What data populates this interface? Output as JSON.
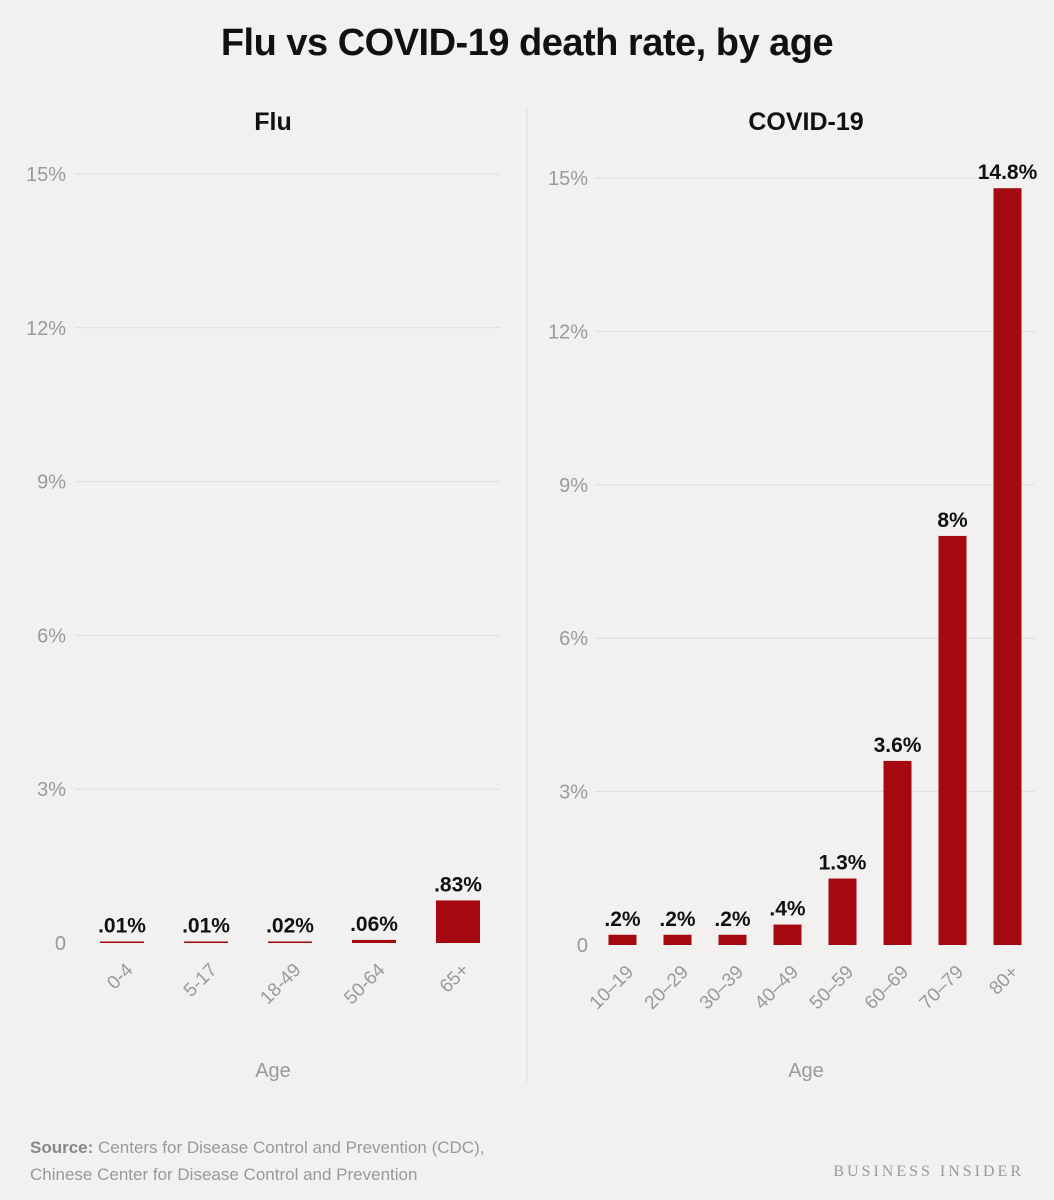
{
  "title": "Flu vs COVID-19 death rate, by age",
  "colors": {
    "bar": "#a5080e",
    "grid": "#dddddd",
    "tick": "#9a9a9a",
    "label": "#111111"
  },
  "chart_data": [
    {
      "type": "bar",
      "title": "Flu",
      "xlabel": "Age",
      "ylabel": "",
      "ylim": [
        0,
        15
      ],
      "yticks": [
        0,
        3,
        6,
        9,
        12,
        15
      ],
      "ytick_labels": [
        "0",
        "3%",
        "6%",
        "9%",
        "12%",
        "15%"
      ],
      "categories": [
        "0-4",
        "5-17",
        "18-49",
        "50-64",
        "65+"
      ],
      "values": [
        0.01,
        0.01,
        0.02,
        0.06,
        0.83
      ],
      "data_labels": [
        ".01%",
        ".01%",
        ".02%",
        ".06%",
        ".83%"
      ]
    },
    {
      "type": "bar",
      "title": "COVID-19",
      "xlabel": "Age",
      "ylabel": "",
      "ylim": [
        0,
        15
      ],
      "yticks": [
        0,
        3,
        6,
        9,
        12,
        15
      ],
      "ytick_labels": [
        "0",
        "3%",
        "6%",
        "9%",
        "12%",
        "15%"
      ],
      "categories": [
        "10–19",
        "20–29",
        "30–39",
        "40–49",
        "50–59",
        "60–69",
        "70–79",
        "80+"
      ],
      "values": [
        0.2,
        0.2,
        0.2,
        0.4,
        1.3,
        3.6,
        8,
        14.8
      ],
      "data_labels": [
        ".2%",
        ".2%",
        ".2%",
        ".4%",
        "1.3%",
        "3.6%",
        "8%",
        "14.8%"
      ]
    }
  ],
  "source": {
    "label": "Source:",
    "line1": "Centers for Disease Control and Prevention (CDC),",
    "line2": "Chinese Center for Disease Control and Prevention"
  },
  "brand": "BUSINESS INSIDER"
}
